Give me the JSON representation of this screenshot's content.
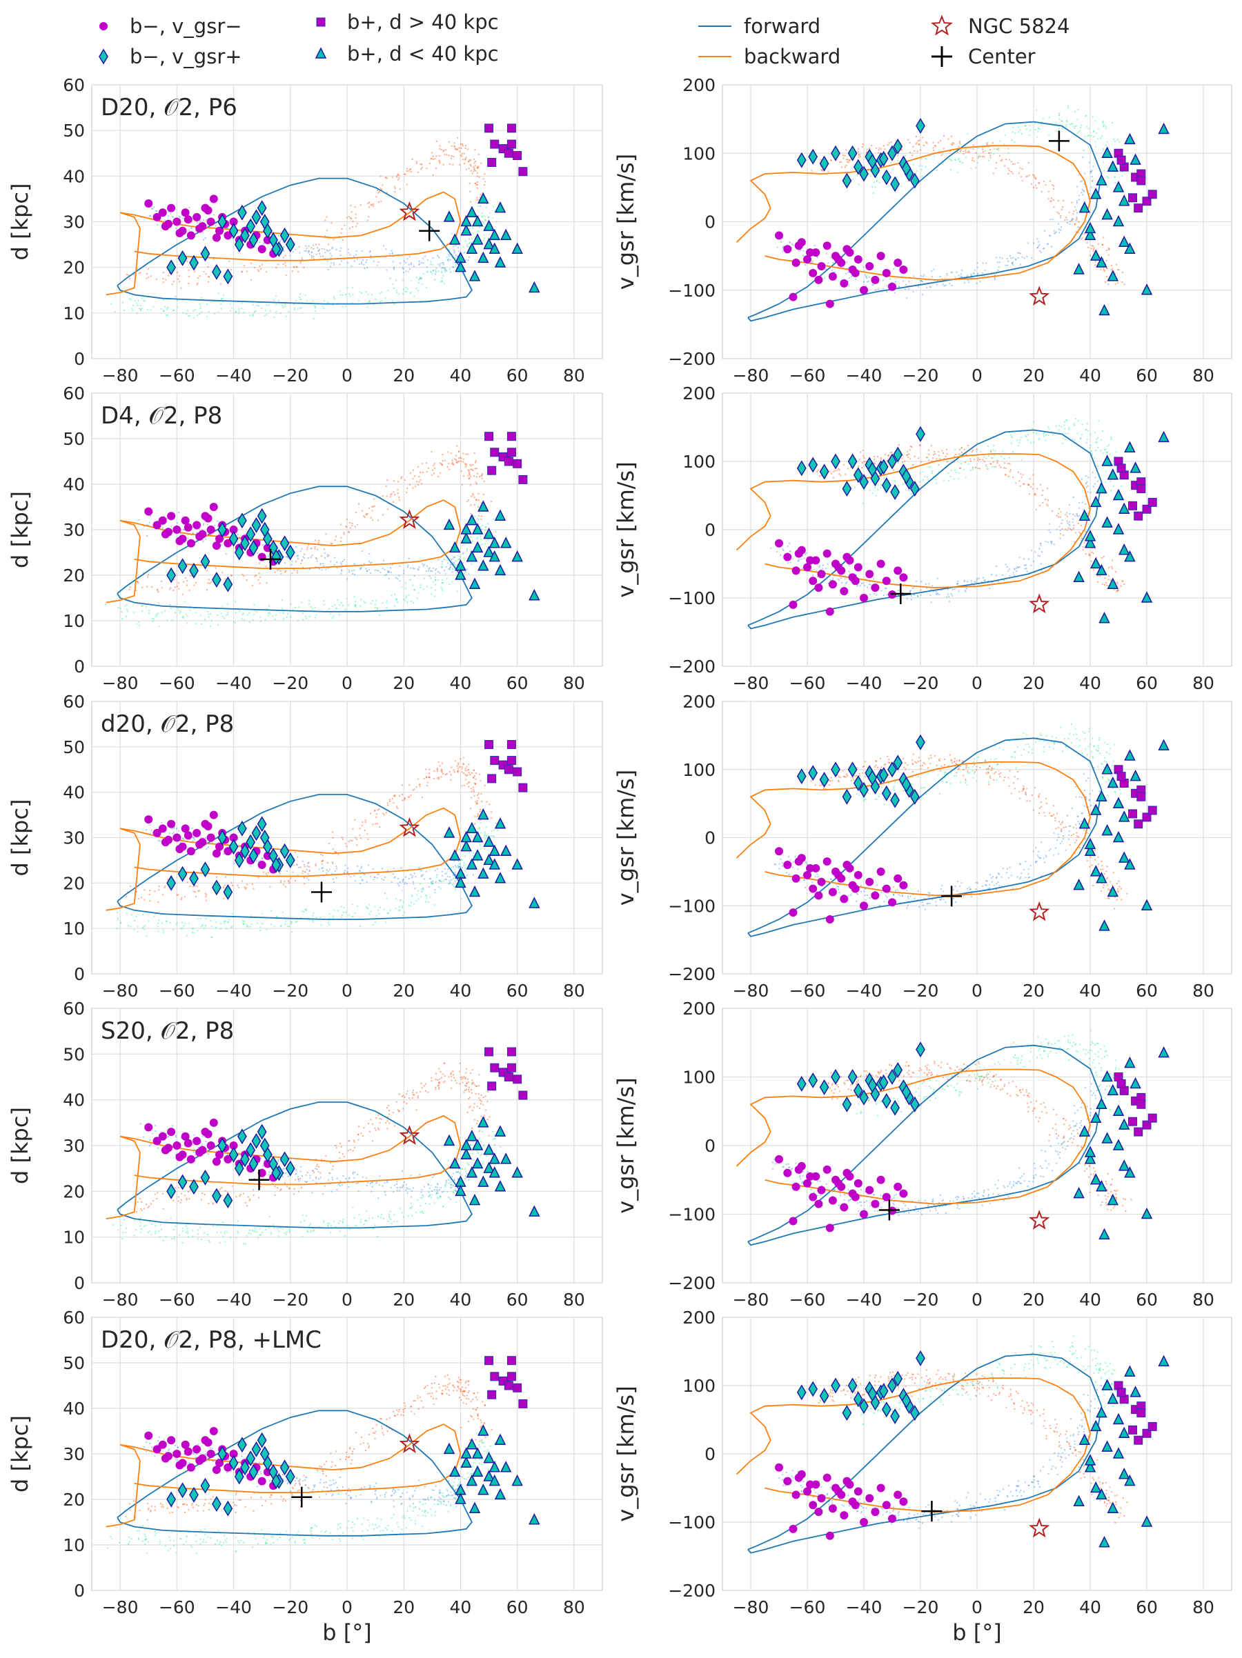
{
  "chart_data": {
    "type": "scatter",
    "colors": {
      "b_minus_vgsr_minus": "#c000c8",
      "b_minus_vgsr_plus": "#14c4b4",
      "b_plus_d_gt_40": "#b000c0",
      "b_plus_d_lt_40": "#00c0b0",
      "forward": "#1f77b4",
      "backward": "#ff7f0e",
      "ngc5824": "#b22222",
      "center": "#000000",
      "sim_forward_stream": "#3c8ee8",
      "sim_backward_stream": "#ff4500",
      "sim_young_stream": "#26f08a",
      "sim_other": "#9a33b0"
    },
    "legend": {
      "entries": [
        {
          "key": "b_minus_vgsr_minus",
          "label": "b−, v_gsr−",
          "marker": "circle"
        },
        {
          "key": "b_minus_vgsr_plus",
          "label": "b−, v_gsr+",
          "marker": "diamond"
        },
        {
          "key": "b_plus_d_gt_40",
          "label": "b+, d > 40 kpc",
          "marker": "square"
        },
        {
          "key": "b_plus_d_lt_40",
          "label": "b+, d < 40 kpc",
          "marker": "triangle"
        },
        {
          "key": "forward",
          "label": "forward",
          "marker": "line"
        },
        {
          "key": "backward",
          "label": "backward",
          "marker": "line"
        },
        {
          "key": "ngc5824",
          "label": "NGC 5824",
          "marker": "star"
        },
        {
          "key": "center",
          "label": "Center",
          "marker": "plus"
        }
      ]
    },
    "axes": {
      "x": {
        "label": "b [°]",
        "lim": [
          -90,
          90
        ],
        "ticks": [
          -80,
          -60,
          -40,
          -20,
          0,
          20,
          40,
          60,
          80
        ]
      },
      "y_left": {
        "label": "d [kpc]",
        "lim": [
          0,
          60
        ],
        "ticks": [
          0,
          10,
          20,
          30,
          40,
          50,
          60
        ]
      },
      "y_right": {
        "label": "v_gsr [km/s]",
        "lim": [
          -200,
          200
        ],
        "ticks": [
          -200,
          -100,
          0,
          100,
          200
        ]
      },
      "grid": true
    },
    "panels": [
      {
        "title": "D20, 𝒪2, P6",
        "center": {
          "b": 29,
          "d": 28,
          "vgsr": 118
        }
      },
      {
        "title": "D4, 𝒪2, P8",
        "center": {
          "b": -27,
          "d": 23.5,
          "vgsr": -94
        }
      },
      {
        "title": "d20, 𝒪2, P8",
        "center": {
          "b": -9,
          "d": 18,
          "vgsr": -86
        }
      },
      {
        "title": "S20, 𝒪2, P8",
        "center": {
          "b": -31,
          "d": 22.5,
          "vgsr": -94
        }
      },
      {
        "title": "D20, 𝒪2, P8, +LMC",
        "center": {
          "b": -16,
          "d": 20.5,
          "vgsr": -84
        }
      }
    ],
    "ngc5824": {
      "b": 22,
      "d": 32.1,
      "vgsr": -109.5
    },
    "forward_orbit": {
      "b": [
        -81,
        -78,
        -70,
        -60,
        -50,
        -40,
        -30,
        -20,
        -10,
        0,
        10,
        20,
        30,
        40,
        44,
        42,
        36,
        28,
        18,
        5,
        -8,
        -20,
        -35,
        -50,
        -65,
        -75,
        -80,
        -81
      ],
      "d": [
        16,
        17.5,
        21,
        25,
        28.5,
        32,
        35.5,
        38,
        39.5,
        39.5,
        37.5,
        34,
        28.5,
        20,
        15,
        13.5,
        13,
        12.5,
        12.3,
        12,
        12,
        12.2,
        12.5,
        12.8,
        13.2,
        14,
        15,
        16
      ],
      "vgsr": [
        -140,
        -135,
        -120,
        -95,
        -60,
        -20,
        20,
        60,
        95,
        125,
        143,
        146,
        140,
        112,
        70,
        20,
        -25,
        -50,
        -65,
        -76,
        -84,
        -92,
        -102,
        -115,
        -128,
        -140,
        -145,
        -140
      ]
    },
    "backward_orbit": {
      "b": [
        -85,
        -80,
        -75,
        -73,
        -75,
        -80,
        -75,
        -65,
        -55,
        -45,
        -35,
        -25,
        -15,
        -5,
        5,
        15,
        22,
        28,
        34,
        38,
        40,
        38,
        33,
        25,
        15,
        0,
        -15,
        -30,
        -45,
        -60,
        -70,
        -75
      ],
      "d": [
        14,
        14.5,
        15.5,
        28.5,
        31,
        32,
        31.5,
        30,
        29,
        28.5,
        28,
        27.5,
        27,
        26.5,
        27,
        29,
        32,
        35,
        36.5,
        35,
        30,
        26,
        24,
        23,
        22.5,
        22,
        21.5,
        21.5,
        22,
        22.5,
        23,
        23.5
      ],
      "vgsr": [
        -30,
        -10,
        5,
        20,
        40,
        60,
        70,
        72,
        70,
        72,
        78,
        88,
        100,
        108,
        111,
        111,
        110,
        100,
        85,
        60,
        30,
        0,
        -30,
        -60,
        -75,
        -83,
        -85,
        -80,
        -70,
        -60,
        -55,
        -50
      ]
    },
    "obs_b_minus_vgsr_minus": {
      "b": [
        -70,
        -67,
        -64,
        -62,
        -60,
        -58,
        -57,
        -55,
        -53,
        -51,
        -50,
        -48,
        -47,
        -45,
        -44,
        -42,
        -40,
        -38,
        -36,
        -34,
        -32,
        -30,
        -28,
        -26,
        -65,
        -63,
        -59,
        -56,
        -52,
        -49,
        -46,
        -43
      ],
      "d": [
        34,
        31,
        29,
        33,
        30,
        28,
        32,
        27,
        31,
        29,
        33,
        30,
        35,
        28,
        31,
        27,
        30,
        26,
        28,
        25,
        27,
        24,
        26,
        23,
        32,
        29.5,
        27.5,
        30.5,
        28.5,
        32.5,
        26.5,
        29.5
      ],
      "vgsr": [
        -20,
        -40,
        -60,
        -30,
        -55,
        -75,
        -45,
        -65,
        -35,
        -80,
        -50,
        -60,
        -90,
        -45,
        -70,
        -55,
        -100,
        -65,
        -85,
        -50,
        -75,
        -95,
        -60,
        -70,
        -110,
        -35,
        -45,
        -85,
        -120,
        -55,
        -40,
        -75
      ]
    },
    "obs_b_minus_vgsr_plus": {
      "b": [
        -62,
        -58,
        -54,
        -50,
        -46,
        -42,
        -38,
        -36,
        -34,
        -32,
        -30,
        -28,
        -26,
        -24,
        -22,
        -20,
        -44,
        -40,
        -37,
        -33,
        -29,
        -25
      ],
      "d": [
        20,
        22,
        21,
        23,
        19,
        18,
        25,
        27,
        29,
        31,
        33,
        28,
        26,
        24,
        27,
        25,
        30,
        28,
        32,
        26,
        30,
        24
      ],
      "vgsr": [
        90,
        95,
        85,
        100,
        60,
        80,
        95,
        75,
        90,
        65,
        100,
        110,
        85,
        70,
        60,
        140,
        100,
        70,
        88,
        92,
        55,
        78
      ]
    },
    "obs_b_plus_d_gt_40": {
      "b": [
        50,
        52,
        56,
        58,
        55,
        60,
        58,
        62,
        51,
        57
      ],
      "d": [
        50.5,
        47,
        46,
        50.5,
        46,
        44.5,
        47,
        41,
        43,
        45
      ],
      "vgsr": [
        100,
        80,
        65,
        70,
        35,
        30,
        60,
        40,
        90,
        20
      ]
    },
    "obs_b_plus_d_lt_40": {
      "b": [
        38,
        40,
        42,
        44,
        46,
        48,
        50,
        52,
        54,
        40,
        44,
        48,
        52,
        46,
        42,
        50,
        54,
        56,
        60,
        66,
        36,
        45
      ],
      "d": [
        26,
        22,
        28,
        24,
        30,
        22,
        25,
        27,
        33,
        20,
        32,
        35,
        24,
        26,
        30,
        29,
        21,
        27,
        24,
        15.5,
        31,
        18
      ],
      "vgsr": [
        20,
        -20,
        40,
        -60,
        10,
        -80,
        0,
        30,
        -40,
        -10,
        60,
        80,
        -30,
        100,
        -50,
        50,
        120,
        90,
        -100,
        135,
        -70,
        -130
      ]
    }
  }
}
